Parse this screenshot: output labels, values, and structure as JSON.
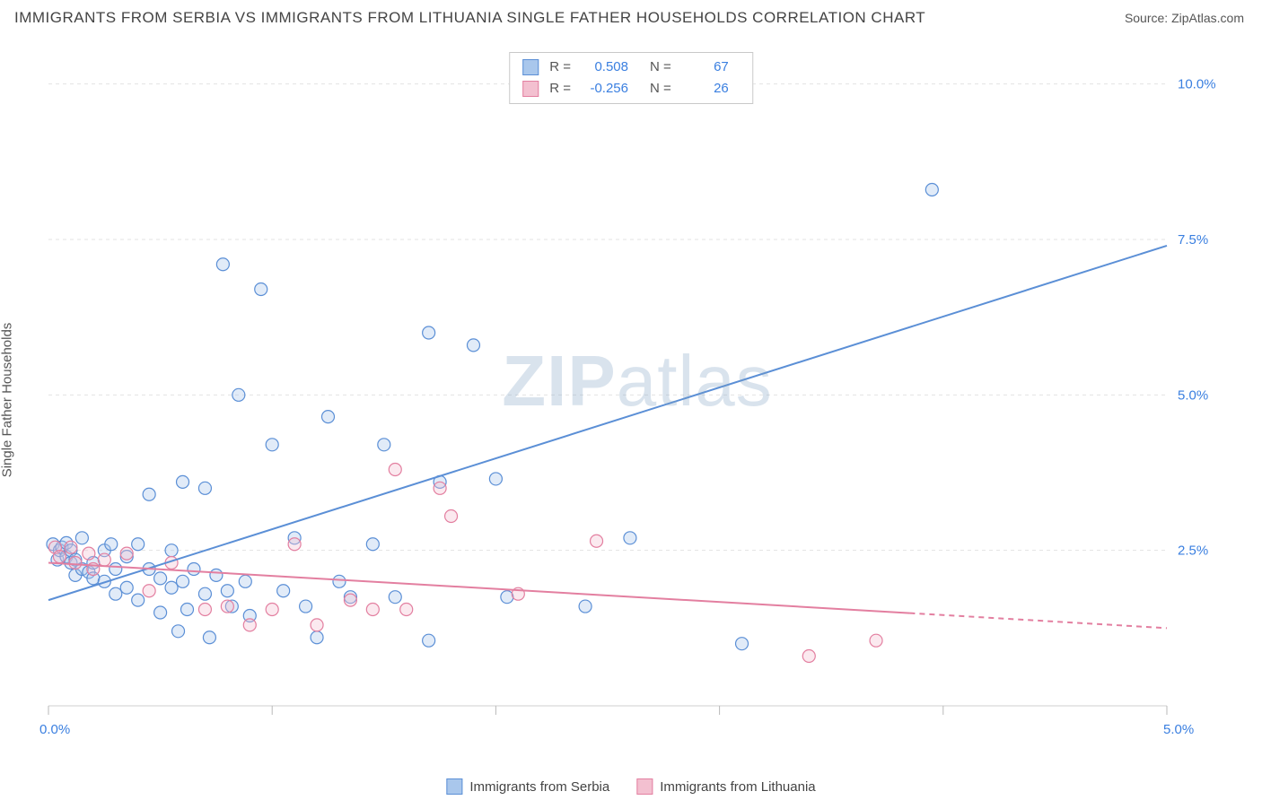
{
  "title": "IMMIGRANTS FROM SERBIA VS IMMIGRANTS FROM LITHUANIA SINGLE FATHER HOUSEHOLDS CORRELATION CHART",
  "source": "Source: ZipAtlas.com",
  "watermark_bold": "ZIP",
  "watermark_rest": "atlas",
  "ylabel": "Single Father Households",
  "chart": {
    "type": "scatter",
    "background_color": "#ffffff",
    "grid_color": "#e3e3e3",
    "grid_dash": "4,4",
    "axis_color": "#cfcfcf",
    "tick_color": "#b9b9b9",
    "label_color": "#3a7fe0",
    "x_range": [
      0,
      5.0
    ],
    "y_range": [
      0,
      10.5
    ],
    "x_ticks": [
      0,
      1,
      2,
      3,
      4,
      5
    ],
    "y_gridlines": [
      2.5,
      5.0,
      7.5,
      10.0
    ],
    "y_tick_labels": [
      "2.5%",
      "5.0%",
      "7.5%",
      "10.0%"
    ],
    "x_origin_label": "0.0%",
    "x_max_label": "5.0%",
    "point_radius": 7,
    "point_stroke_width": 1.2,
    "point_fill_opacity": 0.35,
    "line_width": 2,
    "series": [
      {
        "name": "Immigrants from Serbia",
        "color_stroke": "#5b8fd6",
        "color_fill": "#a9c7ec",
        "r_value": "0.508",
        "n_value": "67",
        "regression": {
          "x1": 0.0,
          "y1": 1.7,
          "x2": 5.0,
          "y2": 7.4,
          "solid_until_x": 5.0
        },
        "points": [
          [
            0.02,
            2.6
          ],
          [
            0.04,
            2.35
          ],
          [
            0.05,
            2.5
          ],
          [
            0.06,
            2.55
          ],
          [
            0.08,
            2.4
          ],
          [
            0.08,
            2.62
          ],
          [
            0.1,
            2.3
          ],
          [
            0.1,
            2.5
          ],
          [
            0.12,
            2.35
          ],
          [
            0.12,
            2.1
          ],
          [
            0.15,
            2.7
          ],
          [
            0.15,
            2.2
          ],
          [
            0.18,
            2.15
          ],
          [
            0.2,
            2.3
          ],
          [
            0.2,
            2.05
          ],
          [
            0.25,
            2.5
          ],
          [
            0.25,
            2.0
          ],
          [
            0.28,
            2.6
          ],
          [
            0.3,
            1.8
          ],
          [
            0.3,
            2.2
          ],
          [
            0.35,
            2.4
          ],
          [
            0.35,
            1.9
          ],
          [
            0.4,
            2.6
          ],
          [
            0.4,
            1.7
          ],
          [
            0.45,
            3.4
          ],
          [
            0.45,
            2.2
          ],
          [
            0.5,
            1.5
          ],
          [
            0.5,
            2.05
          ],
          [
            0.55,
            1.9
          ],
          [
            0.55,
            2.5
          ],
          [
            0.58,
            1.2
          ],
          [
            0.6,
            3.6
          ],
          [
            0.6,
            2.0
          ],
          [
            0.62,
            1.55
          ],
          [
            0.65,
            2.2
          ],
          [
            0.7,
            3.5
          ],
          [
            0.7,
            1.8
          ],
          [
            0.72,
            1.1
          ],
          [
            0.75,
            2.1
          ],
          [
            0.78,
            7.1
          ],
          [
            0.8,
            1.85
          ],
          [
            0.82,
            1.6
          ],
          [
            0.85,
            5.0
          ],
          [
            0.88,
            2.0
          ],
          [
            0.9,
            1.45
          ],
          [
            0.95,
            6.7
          ],
          [
            1.0,
            4.2
          ],
          [
            1.05,
            1.85
          ],
          [
            1.1,
            2.7
          ],
          [
            1.15,
            1.6
          ],
          [
            1.2,
            1.1
          ],
          [
            1.25,
            4.65
          ],
          [
            1.3,
            2.0
          ],
          [
            1.35,
            1.75
          ],
          [
            1.45,
            2.6
          ],
          [
            1.5,
            4.2
          ],
          [
            1.55,
            1.75
          ],
          [
            1.7,
            6.0
          ],
          [
            1.7,
            1.05
          ],
          [
            1.75,
            3.6
          ],
          [
            1.9,
            5.8
          ],
          [
            2.0,
            3.65
          ],
          [
            2.05,
            1.75
          ],
          [
            2.4,
            1.6
          ],
          [
            2.6,
            2.7
          ],
          [
            3.1,
            1.0
          ],
          [
            3.95,
            8.3
          ]
        ]
      },
      {
        "name": "Immigrants from Lithuania",
        "color_stroke": "#e37fa0",
        "color_fill": "#f3c0d0",
        "r_value": "-0.256",
        "n_value": "26",
        "regression": {
          "x1": 0.0,
          "y1": 2.3,
          "x2": 5.0,
          "y2": 1.25,
          "solid_until_x": 3.85
        },
        "points": [
          [
            0.03,
            2.55
          ],
          [
            0.05,
            2.4
          ],
          [
            0.1,
            2.55
          ],
          [
            0.12,
            2.3
          ],
          [
            0.18,
            2.45
          ],
          [
            0.2,
            2.2
          ],
          [
            0.25,
            2.35
          ],
          [
            0.35,
            2.45
          ],
          [
            0.45,
            1.85
          ],
          [
            0.55,
            2.3
          ],
          [
            0.7,
            1.55
          ],
          [
            0.8,
            1.6
          ],
          [
            0.9,
            1.3
          ],
          [
            1.0,
            1.55
          ],
          [
            1.1,
            2.6
          ],
          [
            1.2,
            1.3
          ],
          [
            1.35,
            1.7
          ],
          [
            1.45,
            1.55
          ],
          [
            1.55,
            3.8
          ],
          [
            1.6,
            1.55
          ],
          [
            1.75,
            3.5
          ],
          [
            1.8,
            3.05
          ],
          [
            2.1,
            1.8
          ],
          [
            2.45,
            2.65
          ],
          [
            3.4,
            0.8
          ],
          [
            3.7,
            1.05
          ]
        ]
      }
    ]
  }
}
